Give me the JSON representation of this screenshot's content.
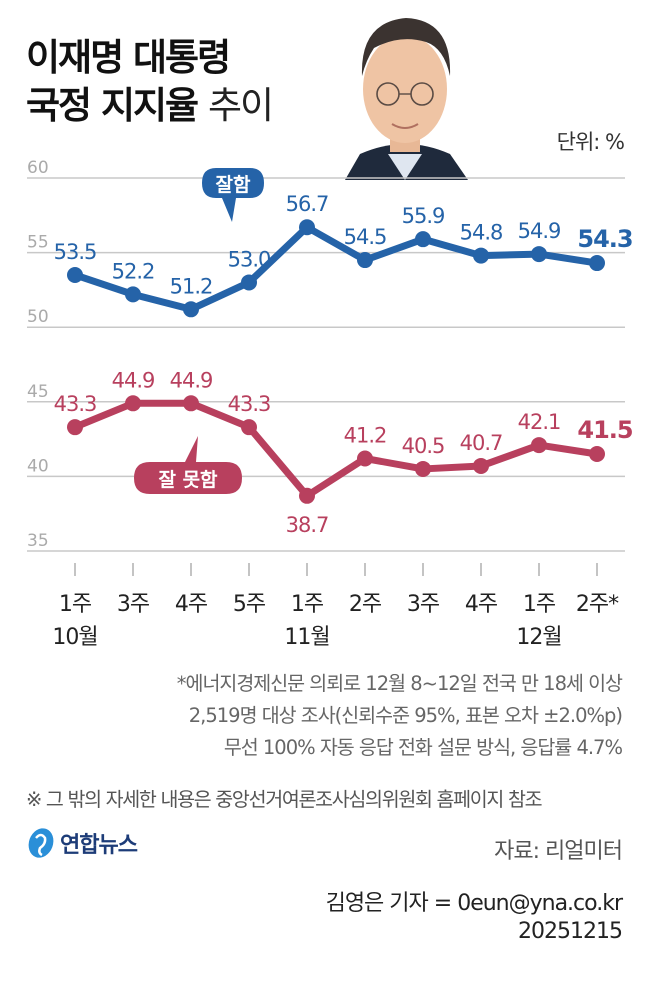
{
  "header": {
    "title_line1": "이재명 대통령",
    "title_line2_bold": "국정 지지율",
    "title_line2_light": "추이",
    "unit": "단위: %"
  },
  "chart_data": {
    "type": "line",
    "title": "이재명 대통령 국정 지지율 추이",
    "ylabel": "%",
    "ylim": [
      35,
      60
    ],
    "yticks": [
      60,
      55,
      50,
      45,
      40,
      35
    ],
    "grid": true,
    "x": [
      "1주",
      "3주",
      "4주",
      "5주",
      "1주",
      "2주",
      "3주",
      "4주",
      "1주",
      "2주*"
    ],
    "month_labels": [
      {
        "label": "10월",
        "index": 0
      },
      {
        "label": "11월",
        "index": 4
      },
      {
        "label": "12월",
        "index": 8
      }
    ],
    "series": [
      {
        "name": "잘함",
        "color": "#2563a8",
        "values": [
          53.5,
          52.2,
          51.2,
          53.0,
          56.7,
          54.5,
          55.9,
          54.8,
          54.9,
          54.3
        ],
        "labels": [
          "53.5",
          "52.2",
          "51.2",
          "53.0",
          "56.7",
          "54.5",
          "55.9",
          "54.8",
          "54.9",
          "54.3"
        ]
      },
      {
        "name": "잘 못함",
        "color": "#b8405e",
        "values": [
          43.3,
          44.9,
          44.9,
          43.3,
          38.7,
          41.2,
          40.5,
          40.7,
          42.1,
          41.5
        ],
        "labels": [
          "43.3",
          "44.9",
          "44.9",
          "43.3",
          "38.7",
          "41.2",
          "40.5",
          "40.7",
          "42.1",
          "41.5"
        ]
      }
    ],
    "legend": "callout-bubbles"
  },
  "footnotes": {
    "line1": "*에너지경제신문 의뢰로 12월 8~12일 전국 만 18세 이상",
    "line2": "2,519명 대상 조사(신뢰수준 95%, 표본 오차 ±2.0%p)",
    "line3": "무선 100% 자동 응답 전화 설문 방식, 응답률 4.7%",
    "note": "※ 그 밖의 자세한 내용은 중앙선거여론조사심의위원회 홈페이지 참조"
  },
  "footer": {
    "logo_text": "연합뉴스",
    "source": "자료: 리얼미터",
    "byline": "김영은 기자 = 0eun@yna.co.kr",
    "date": "20251215"
  }
}
